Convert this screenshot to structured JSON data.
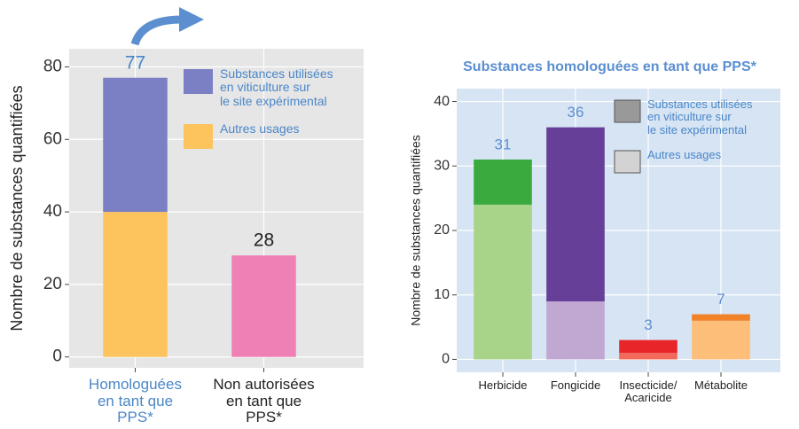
{
  "chart_data": [
    {
      "type": "stacked-bar",
      "ylabel": "Nombre de substances quantifiées",
      "categories": [
        "Homologuées\nen tant que\nPPS*",
        "Non autorisées\nen tant que\nPPS*"
      ],
      "label_colors": [
        "#4a86c8",
        "#222222"
      ],
      "series": [
        {
          "name": "Autres usages",
          "color": "#fdc35c",
          "colors": [
            "#fdc35c",
            "#ee80b6"
          ],
          "values": [
            40,
            28
          ]
        },
        {
          "name": "Substances utilisées\nen viticulture sur\nle site expérimental",
          "color": "#7b80c4",
          "colors": [
            "#7b80c4",
            "#7b80c4"
          ],
          "values": [
            37,
            null
          ]
        }
      ],
      "totals": [
        77,
        28
      ],
      "ylim": [
        -3,
        85
      ],
      "yticks": [
        0,
        20,
        40,
        60,
        80
      ],
      "grid": true,
      "background": "#e6e6e6"
    },
    {
      "type": "stacked-bar",
      "title": "Substances homologuées en tant que PPS*",
      "ylabel": "Nombre de substances quantifiées",
      "categories": [
        "Herbicide",
        "Fongicide",
        "Insecticide/\nAcaricide",
        "Métabolite"
      ],
      "label_colors": [
        "#5b8fd0",
        "#5b8fd0",
        "#5b8fd0",
        "#5b8fd0"
      ],
      "series": [
        {
          "name": "Autres usages",
          "color": "#d3d3d3",
          "colors": [
            "#a8d48a",
            "#c0a8d2",
            "#f46a5a",
            "#fdbe7a"
          ],
          "values": [
            24,
            9,
            1,
            6
          ]
        },
        {
          "name": "Substances utilisées\nen viticulture sur\nle site expérimental",
          "color": "#999999",
          "colors": [
            "#3aaa3f",
            "#653f98",
            "#e8262a",
            "#f28228"
          ],
          "values": [
            7,
            27,
            2,
            1
          ]
        }
      ],
      "totals": [
        31,
        36,
        3,
        7
      ],
      "ylim": [
        -2,
        42
      ],
      "yticks": [
        0,
        10,
        20,
        30,
        40
      ],
      "grid": true,
      "background": "#d6e4f3"
    }
  ]
}
